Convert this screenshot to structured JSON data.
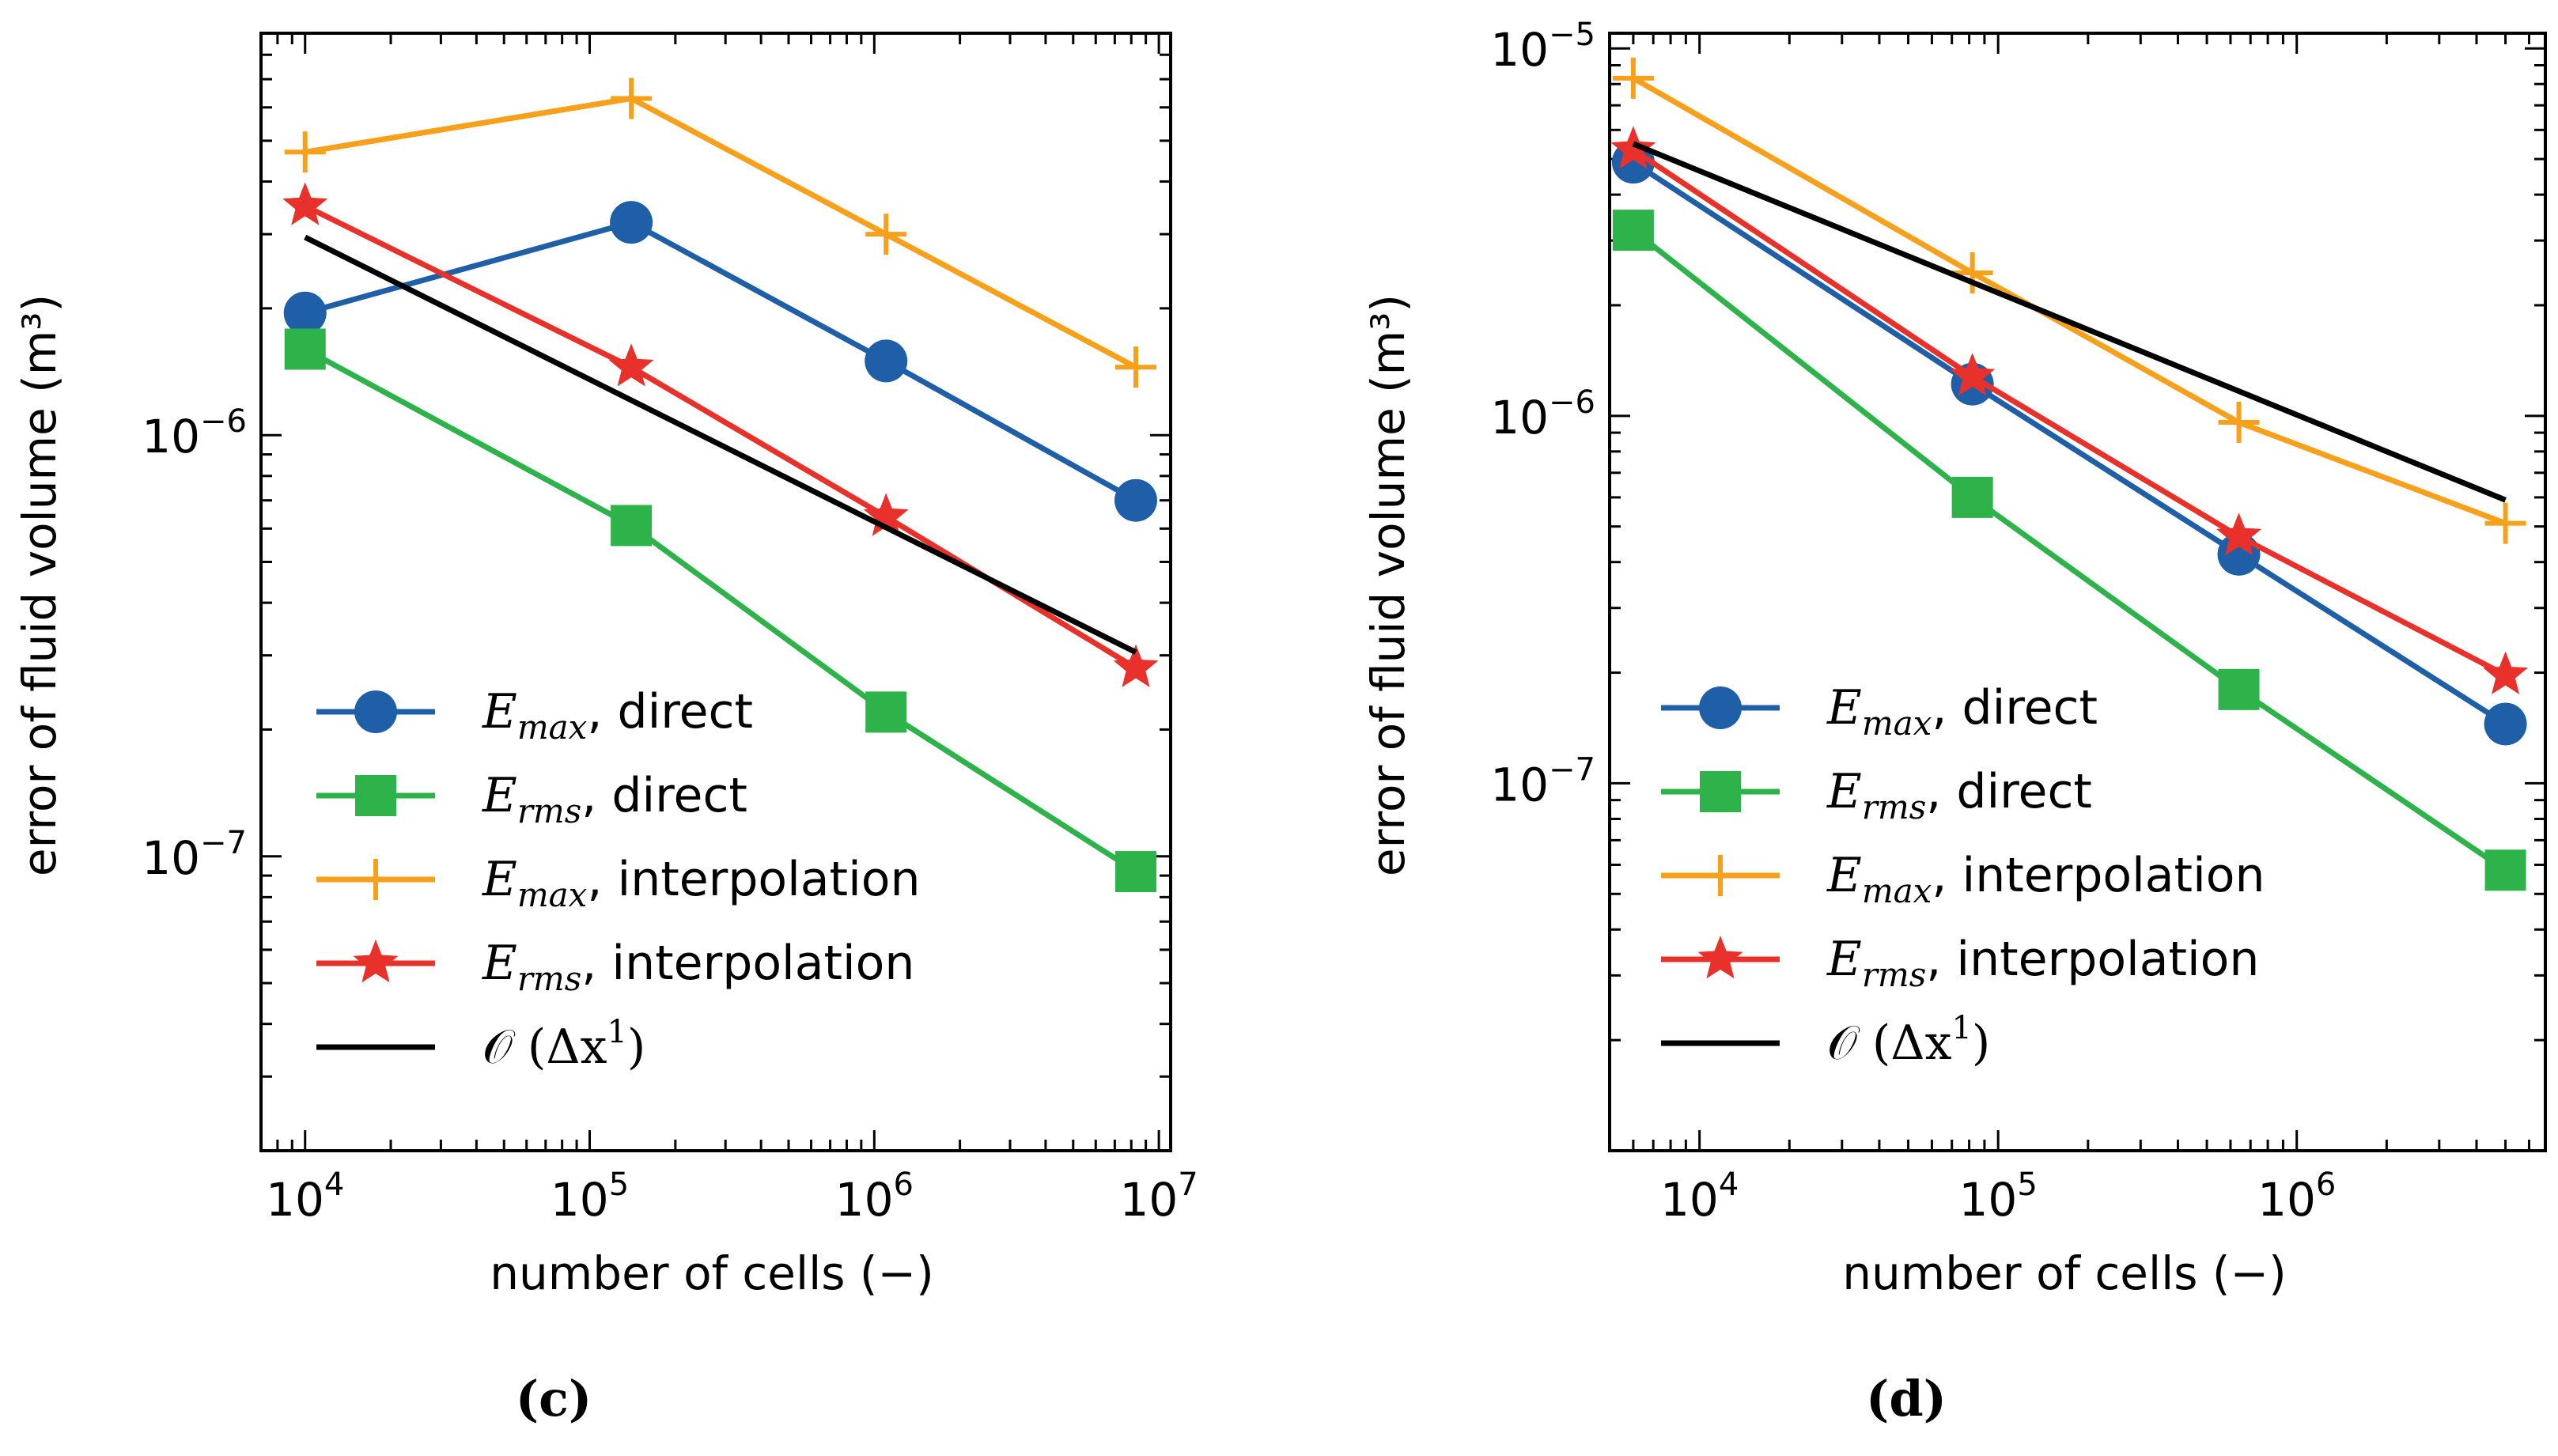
{
  "colors": {
    "blue": "#1f5fa8",
    "green": "#2db34a",
    "orange": "#f7a01c",
    "red": "#e8312a",
    "black": "#000000"
  },
  "chart_data": [
    {
      "type": "line",
      "caption": "(c)",
      "xscale": "log",
      "yscale": "log",
      "xlabel": "number of cells (−)",
      "ylabel": "error of fluid volume (m³)",
      "xlim": [
        7000,
        11000000
      ],
      "ylim": [
        2e-08,
        9e-06
      ],
      "xticks": [
        {
          "value": 10000,
          "base": "10",
          "exp": "4"
        },
        {
          "value": 100000,
          "base": "10",
          "exp": "5"
        },
        {
          "value": 1000000,
          "base": "10",
          "exp": "6"
        },
        {
          "value": 10000000,
          "base": "10",
          "exp": "7"
        }
      ],
      "yticks": [
        {
          "value": 1e-07,
          "base": "10",
          "exp": "−7"
        },
        {
          "value": 1e-06,
          "base": "10",
          "exp": "−6"
        }
      ],
      "legend_position": "lower-left",
      "series": [
        {
          "name": "E_max, direct",
          "label_main": "E",
          "label_sub": "max",
          "label_rest": ", direct",
          "color": "#1f5fa8",
          "marker": "circle",
          "x": [
            10000,
            140000,
            1100000,
            8300000
          ],
          "values": [
            1.95e-06,
            3.2e-06,
            1.5e-06,
            7e-07
          ]
        },
        {
          "name": "E_rms, direct",
          "label_main": "E",
          "label_sub": "rms",
          "label_rest": ", direct",
          "color": "#2db34a",
          "marker": "square",
          "x": [
            10000,
            140000,
            1100000,
            8300000
          ],
          "values": [
            1.6e-06,
            6.1e-07,
            2.2e-07,
            9.2e-08
          ]
        },
        {
          "name": "E_max, interpolation",
          "label_main": "E",
          "label_sub": "max",
          "label_rest": ", interpolation",
          "color": "#f7a01c",
          "marker": "plus",
          "x": [
            10000,
            140000,
            1100000,
            8300000
          ],
          "values": [
            4.7e-06,
            6.3e-06,
            3e-06,
            1.45e-06
          ]
        },
        {
          "name": "E_rms, interpolation",
          "label_main": "E",
          "label_sub": "rms",
          "label_rest": ", interpolation",
          "color": "#e8312a",
          "marker": "star",
          "x": [
            10000,
            140000,
            1100000,
            8300000
          ],
          "values": [
            3.5e-06,
            1.45e-06,
            6.4e-07,
            2.8e-07
          ]
        },
        {
          "name": "O(Δx¹)",
          "label_main": "𝒪 (Δx",
          "label_sup": "1",
          "label_rest": ")",
          "color": "#000000",
          "marker": "none",
          "x": [
            10000,
            8300000
          ],
          "values": [
            2.95e-06,
            3.05e-07
          ]
        }
      ]
    },
    {
      "type": "line",
      "caption": "(d)",
      "xscale": "log",
      "yscale": "log",
      "xlabel": "number of cells (−)",
      "ylabel": "error of fluid volume (m³)",
      "xlim": [
        5000,
        6800000
      ],
      "ylim": [
        1e-08,
        1.1e-05
      ],
      "xticks": [
        {
          "value": 10000,
          "base": "10",
          "exp": "4"
        },
        {
          "value": 100000,
          "base": "10",
          "exp": "5"
        },
        {
          "value": 1000000,
          "base": "10",
          "exp": "6"
        }
      ],
      "yticks": [
        {
          "value": 1e-07,
          "base": "10",
          "exp": "−7"
        },
        {
          "value": 1e-06,
          "base": "10",
          "exp": "−6"
        },
        {
          "value": 1e-05,
          "base": "10",
          "exp": "−5"
        }
      ],
      "legend_position": "lower-left",
      "series": [
        {
          "name": "E_max, direct",
          "label_main": "E",
          "label_sub": "max",
          "label_rest": ", direct",
          "color": "#1f5fa8",
          "marker": "circle",
          "x": [
            6000,
            82000,
            640000,
            5000000
          ],
          "values": [
            4.9e-06,
            1.22e-06,
            4.2e-07,
            1.45e-07
          ]
        },
        {
          "name": "E_rms, direct",
          "label_main": "E",
          "label_sub": "rms",
          "label_rest": ", direct",
          "color": "#2db34a",
          "marker": "square",
          "x": [
            6000,
            82000,
            640000,
            5000000
          ],
          "values": [
            3.2e-06,
            6e-07,
            1.8e-07,
            5.8e-08
          ]
        },
        {
          "name": "E_max, interpolation",
          "label_main": "E",
          "label_sub": "max",
          "label_rest": ", interpolation",
          "color": "#f7a01c",
          "marker": "plus",
          "x": [
            6000,
            82000,
            640000,
            5000000
          ],
          "values": [
            8.3e-06,
            2.45e-06,
            9.6e-07,
            5.1e-07
          ]
        },
        {
          "name": "E_rms, interpolation",
          "label_main": "E",
          "label_sub": "rms",
          "label_rest": ", interpolation",
          "color": "#e8312a",
          "marker": "star",
          "x": [
            6000,
            82000,
            640000,
            5000000
          ],
          "values": [
            5.3e-06,
            1.28e-06,
            4.7e-07,
            1.97e-07
          ]
        },
        {
          "name": "O(Δx¹)",
          "label_main": "𝒪 (Δx",
          "label_sup": "1",
          "label_rest": ")",
          "color": "#000000",
          "marker": "none",
          "x": [
            6000,
            5000000
          ],
          "values": [
            5.5e-06,
            5.9e-07
          ]
        }
      ]
    }
  ]
}
